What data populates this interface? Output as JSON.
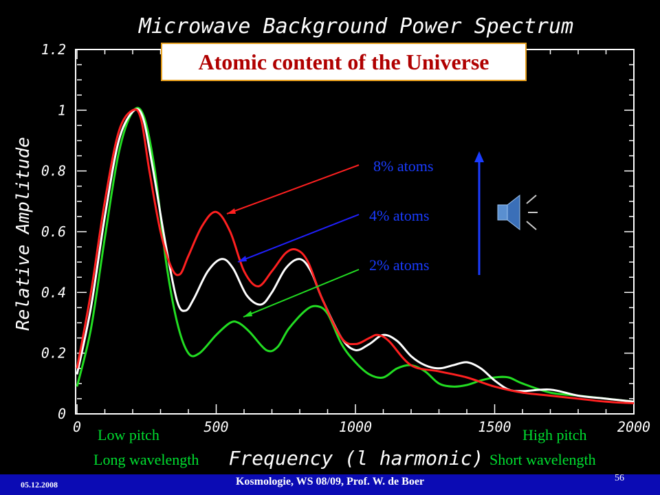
{
  "slide": {
    "overlay_title": "Atomic content of the Universe",
    "labels": {
      "low_pitch": "Low pitch",
      "long_wavelength": "Long wavelength",
      "high_pitch": "High pitch",
      "short_wavelength": "Short wavelength"
    },
    "footer": {
      "date": "05.12.2008",
      "course": "Kosmologie,  WS 08/09,  Prof. W. de Boer",
      "page": "56"
    },
    "icons": {
      "speaker": "speaker-icon",
      "arrow": "up-arrow-icon"
    },
    "colors": {
      "accent_text": "#1a3cff",
      "title_text": "#b00000",
      "corner_text": "#00e030",
      "footer_bg": "#0b0bb4"
    }
  },
  "chart_data": {
    "type": "line",
    "title": "Microwave Background Power Spectrum",
    "xlabel": "Frequency (l harmonic)",
    "ylabel": "Relative Amplitude",
    "xlim": [
      0,
      2000
    ],
    "ylim": [
      0,
      1.2
    ],
    "xticks": [
      "0",
      "500",
      "1000",
      "1500",
      "2000"
    ],
    "yticks": [
      "0",
      "0.2",
      "0.4",
      "0.6",
      "0.8",
      "1",
      "1.2"
    ],
    "grid": false,
    "series": [
      {
        "name": "8% atoms",
        "color": "#ff2020",
        "x": [
          0,
          50,
          100,
          150,
          200,
          230,
          260,
          300,
          340,
          370,
          400,
          450,
          500,
          550,
          600,
          650,
          700,
          750,
          790,
          830,
          880,
          950,
          1000,
          1050,
          1080,
          1120,
          1200,
          1300,
          1400,
          1500,
          1600,
          1700,
          1800,
          1900,
          2000
        ],
        "y": [
          0.15,
          0.4,
          0.7,
          0.93,
          1.0,
          0.97,
          0.8,
          0.6,
          0.48,
          0.46,
          0.52,
          0.62,
          0.665,
          0.6,
          0.47,
          0.42,
          0.47,
          0.53,
          0.54,
          0.5,
          0.38,
          0.25,
          0.23,
          0.25,
          0.26,
          0.24,
          0.16,
          0.14,
          0.12,
          0.09,
          0.07,
          0.06,
          0.05,
          0.04,
          0.035
        ]
      },
      {
        "name": "4% atoms",
        "color": "#ffffff",
        "x": [
          0,
          50,
          100,
          150,
          200,
          235,
          270,
          320,
          360,
          390,
          420,
          470,
          520,
          560,
          610,
          660,
          700,
          750,
          800,
          840,
          880,
          950,
          1000,
          1050,
          1100,
          1150,
          1200,
          1250,
          1300,
          1350,
          1400,
          1450,
          1500,
          1550,
          1600,
          1700,
          1800,
          1900,
          2000
        ],
        "y": [
          0.13,
          0.35,
          0.65,
          0.9,
          0.995,
          0.98,
          0.82,
          0.55,
          0.37,
          0.34,
          0.38,
          0.47,
          0.51,
          0.48,
          0.39,
          0.36,
          0.4,
          0.48,
          0.51,
          0.47,
          0.38,
          0.25,
          0.21,
          0.23,
          0.26,
          0.24,
          0.19,
          0.16,
          0.15,
          0.16,
          0.17,
          0.15,
          0.11,
          0.08,
          0.075,
          0.08,
          0.06,
          0.05,
          0.04
        ]
      },
      {
        "name": "2% atoms",
        "color": "#22dd22",
        "x": [
          0,
          50,
          100,
          150,
          200,
          240,
          280,
          320,
          360,
          400,
          440,
          500,
          550,
          580,
          620,
          680,
          720,
          760,
          820,
          860,
          900,
          950,
          1000,
          1050,
          1100,
          1150,
          1200,
          1250,
          1300,
          1350,
          1400,
          1450,
          1500,
          1550,
          1600,
          1700,
          1800,
          1900,
          2000
        ],
        "y": [
          0.09,
          0.28,
          0.58,
          0.86,
          0.995,
          0.98,
          0.8,
          0.5,
          0.3,
          0.2,
          0.2,
          0.26,
          0.3,
          0.3,
          0.27,
          0.21,
          0.22,
          0.28,
          0.34,
          0.355,
          0.33,
          0.23,
          0.17,
          0.13,
          0.12,
          0.15,
          0.16,
          0.14,
          0.1,
          0.09,
          0.095,
          0.11,
          0.12,
          0.12,
          0.1,
          0.07,
          0.06,
          0.05,
          0.04
        ]
      }
    ]
  }
}
